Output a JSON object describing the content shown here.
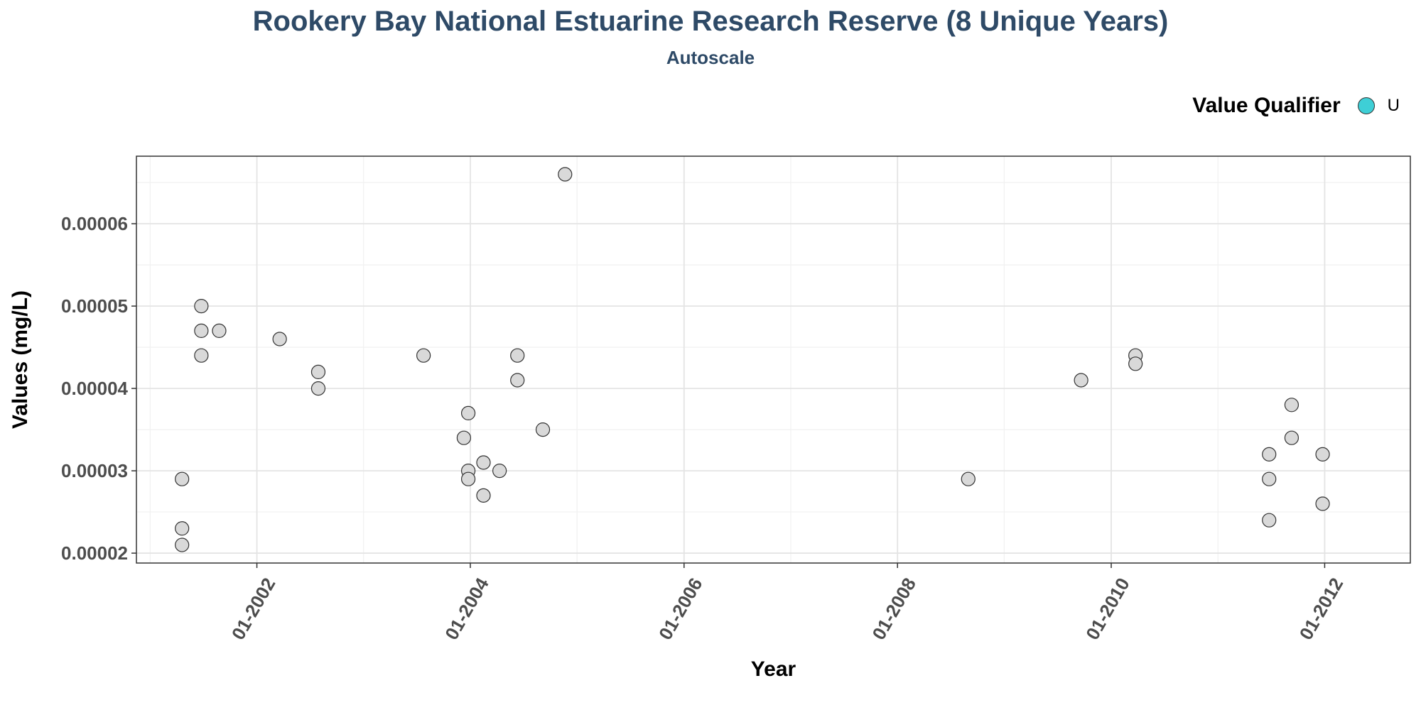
{
  "chart_data": {
    "type": "scatter",
    "title": "Rookery Bay National Estuarine Research Reserve (8 Unique Years)",
    "subtitle": "Autoscale",
    "xlabel": "Year",
    "ylabel": "Values (mg/L)",
    "x_tick_labels": [
      "01-2002",
      "01-2004",
      "01-2006",
      "01-2008",
      "01-2010",
      "01-2012"
    ],
    "x_ticks": [
      "2002-01-01",
      "2004-01-01",
      "2006-01-01",
      "2008-01-01",
      "2010-01-01",
      "2012-01-01"
    ],
    "y_tick_labels": [
      "0.00002",
      "0.00003",
      "0.00004",
      "0.00005",
      "0.00006"
    ],
    "y_ticks": [
      2e-05,
      3e-05,
      4e-05,
      5e-05,
      6e-05
    ],
    "xlim": [
      "2000-11-15",
      "2012-10-20"
    ],
    "ylim": [
      1.88e-05,
      6.82e-05
    ],
    "grid": true,
    "legend": {
      "title": "Value Qualifier",
      "position": "top-right",
      "entries": [
        {
          "label": "U",
          "color": "#3ecfd6"
        }
      ]
    },
    "point_fill": "#d9d9d9",
    "point_stroke": "#333333",
    "points": [
      {
        "x": "2001-04-20",
        "y": 2.9e-05
      },
      {
        "x": "2001-04-20",
        "y": 2.3e-05
      },
      {
        "x": "2001-04-20",
        "y": 2.1e-05
      },
      {
        "x": "2001-06-25",
        "y": 5e-05
      },
      {
        "x": "2001-06-25",
        "y": 4.7e-05
      },
      {
        "x": "2001-06-25",
        "y": 4.4e-05
      },
      {
        "x": "2001-08-25",
        "y": 4.7e-05
      },
      {
        "x": "2002-03-20",
        "y": 4.6e-05
      },
      {
        "x": "2002-07-30",
        "y": 4.2e-05
      },
      {
        "x": "2002-07-30",
        "y": 4e-05
      },
      {
        "x": "2003-07-25",
        "y": 4.4e-05
      },
      {
        "x": "2003-12-10",
        "y": 3.4e-05
      },
      {
        "x": "2003-12-25",
        "y": 3.7e-05
      },
      {
        "x": "2003-12-25",
        "y": 3e-05
      },
      {
        "x": "2003-12-25",
        "y": 2.9e-05
      },
      {
        "x": "2004-02-15",
        "y": 3.1e-05
      },
      {
        "x": "2004-02-15",
        "y": 2.7e-05
      },
      {
        "x": "2004-04-10",
        "y": 3e-05
      },
      {
        "x": "2004-06-10",
        "y": 4.4e-05
      },
      {
        "x": "2004-06-10",
        "y": 4.1e-05
      },
      {
        "x": "2004-09-05",
        "y": 3.5e-05
      },
      {
        "x": "2004-11-20",
        "y": 6.6e-05
      },
      {
        "x": "2008-08-30",
        "y": 2.9e-05
      },
      {
        "x": "2009-09-20",
        "y": 4.1e-05
      },
      {
        "x": "2010-03-25",
        "y": 4.4e-05
      },
      {
        "x": "2010-03-25",
        "y": 4.3e-05
      },
      {
        "x": "2011-06-25",
        "y": 3.2e-05
      },
      {
        "x": "2011-06-25",
        "y": 2.9e-05
      },
      {
        "x": "2011-06-25",
        "y": 2.4e-05
      },
      {
        "x": "2011-09-10",
        "y": 3.8e-05
      },
      {
        "x": "2011-09-10",
        "y": 3.4e-05
      },
      {
        "x": "2011-12-25",
        "y": 3.2e-05
      },
      {
        "x": "2011-12-25",
        "y": 2.6e-05
      }
    ]
  }
}
